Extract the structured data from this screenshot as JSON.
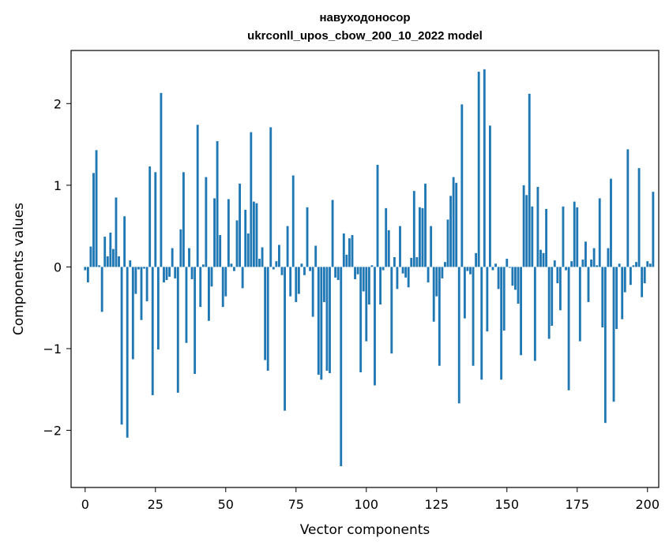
{
  "chart_data": {
    "type": "bar",
    "title_lines": [
      "навуходоносор",
      "ukrconll_upos_cbow_200_10_2022 model"
    ],
    "xlabel": "Vector components",
    "ylabel": "Components values",
    "xlim": [
      -5,
      204
    ],
    "ylim": [
      -2.7,
      2.65
    ],
    "xticks": [
      0,
      25,
      50,
      75,
      100,
      125,
      150,
      175,
      200
    ],
    "xtick_labels": [
      "0",
      "25",
      "50",
      "75",
      "100",
      "125",
      "150",
      "175",
      "200"
    ],
    "yticks": [
      -2,
      -1,
      0,
      1,
      2
    ],
    "ytick_labels": [
      "−2",
      "−1",
      "0",
      "1",
      "2"
    ],
    "bar_color": "#1f77b4",
    "grid": false,
    "values": [
      -0.04,
      -0.19,
      0.25,
      1.15,
      1.43,
      0.02,
      -0.55,
      0.37,
      0.13,
      0.42,
      0.22,
      0.85,
      0.13,
      -1.93,
      0.62,
      -2.09,
      0.08,
      -1.13,
      -0.33,
      -0.03,
      -0.65,
      -0.02,
      -0.42,
      1.23,
      -1.57,
      1.16,
      -1.01,
      2.13,
      -0.19,
      -0.16,
      -0.12,
      0.23,
      -0.14,
      -1.54,
      0.46,
      1.16,
      -0.93,
      0.23,
      -0.15,
      -1.31,
      1.74,
      -0.49,
      0.03,
      1.1,
      -0.66,
      -0.24,
      0.84,
      1.54,
      0.39,
      -0.49,
      -0.36,
      0.83,
      0.04,
      -0.05,
      0.57,
      1.02,
      -0.26,
      0.7,
      0.41,
      1.65,
      0.8,
      0.78,
      0.1,
      0.24,
      -1.14,
      -1.27,
      1.71,
      -0.03,
      0.07,
      0.27,
      -0.1,
      -1.76,
      0.5,
      -0.36,
      1.12,
      -0.43,
      -0.33,
      0.04,
      -0.1,
      0.73,
      -0.05,
      -0.61,
      0.26,
      -1.32,
      -1.38,
      -0.43,
      -1.27,
      -1.3,
      0.82,
      -0.13,
      -0.16,
      -2.44,
      0.41,
      0.15,
      0.35,
      0.39,
      -0.15,
      -0.09,
      -1.29,
      -0.3,
      -0.91,
      -0.46,
      0.02,
      -1.45,
      1.25,
      -0.46,
      -0.04,
      0.72,
      0.45,
      -1.06,
      0.12,
      -0.27,
      0.5,
      -0.08,
      -0.13,
      -0.25,
      0.11,
      0.93,
      0.12,
      0.73,
      0.72,
      1.02,
      -0.19,
      0.5,
      -0.67,
      -0.36,
      -1.21,
      -0.14,
      0.06,
      0.58,
      0.87,
      1.1,
      1.03,
      -1.67,
      1.99,
      -0.63,
      -0.05,
      -0.09,
      -1.21,
      0.17,
      2.39,
      -1.38,
      2.42,
      -0.79,
      1.73,
      -0.04,
      0.04,
      -0.27,
      -1.38,
      -0.78,
      0.1,
      -0.01,
      -0.23,
      -0.28,
      -0.45,
      -1.08,
      1.0,
      0.88,
      2.12,
      0.74,
      -1.15,
      0.98,
      0.21,
      0.17,
      0.71,
      -0.88,
      -0.72,
      0.08,
      -0.2,
      -0.53,
      0.74,
      -0.04,
      -1.51,
      0.07,
      0.8,
      0.73,
      -0.91,
      0.09,
      0.31,
      -0.43,
      0.09,
      0.23,
      0.02,
      0.84,
      -0.74,
      -1.91,
      0.23,
      1.08,
      -1.65,
      -0.76,
      0.04,
      -0.64,
      -0.31,
      1.44,
      -0.22,
      0.02,
      0.06,
      1.21,
      -0.37,
      -0.2,
      0.07,
      0.04,
      0.92
    ]
  }
}
